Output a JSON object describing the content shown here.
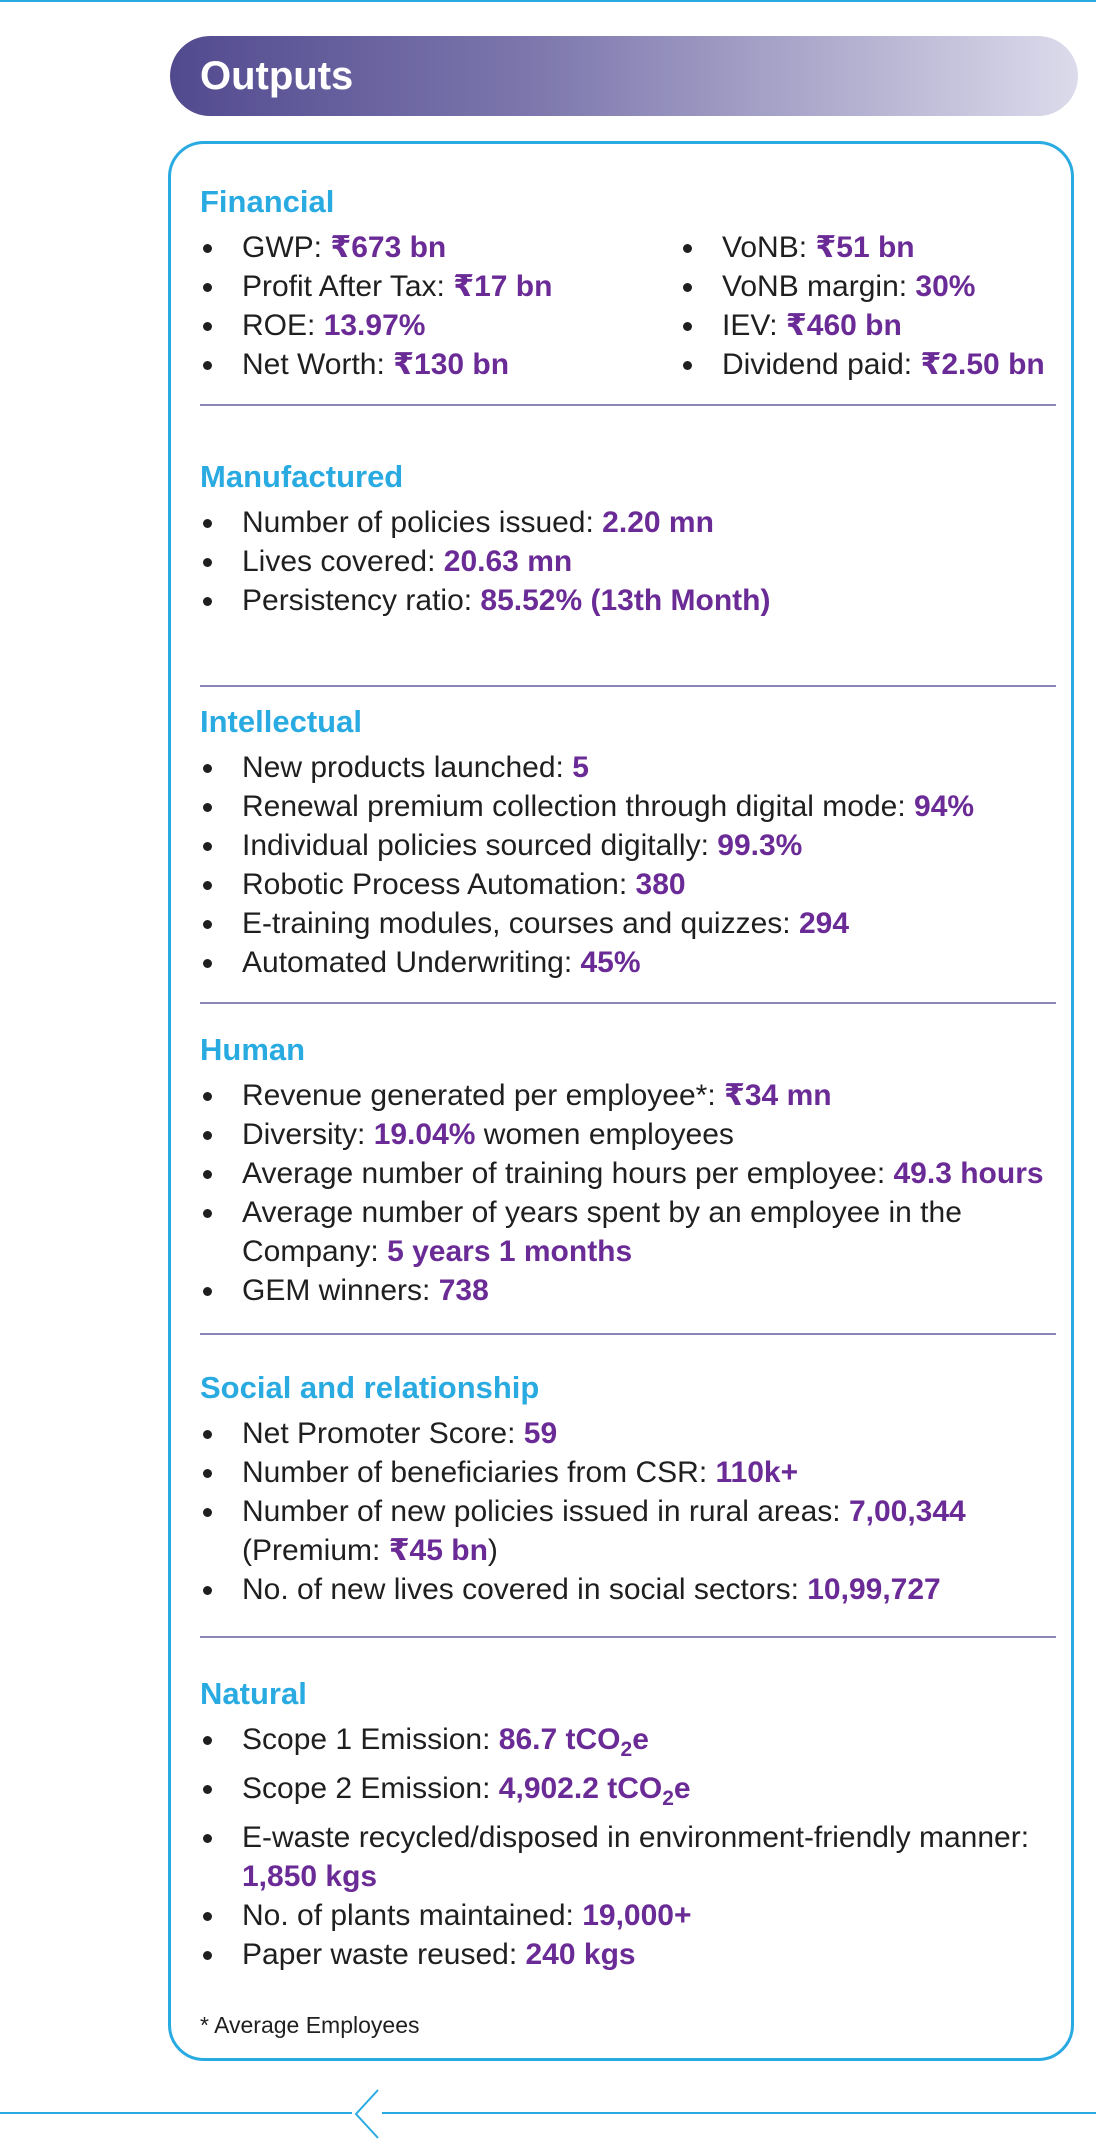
{
  "banner": {
    "title": "Outputs"
  },
  "financial": {
    "title": "Financial",
    "col1": [
      {
        "label": "GWP: ",
        "value": "₹673 bn"
      },
      {
        "label": "Profit After Tax: ",
        "value": "₹17 bn"
      },
      {
        "label": "ROE: ",
        "value": "13.97%"
      },
      {
        "label": "Net Worth: ",
        "value": "₹130 bn"
      }
    ],
    "col2": [
      {
        "label": "VoNB: ",
        "value": "₹51 bn"
      },
      {
        "label": "VoNB margin: ",
        "value": "30%"
      },
      {
        "label": "IEV: ",
        "value": "₹460 bn"
      },
      {
        "label": "Dividend paid: ",
        "value": "₹2.50 bn"
      }
    ]
  },
  "manufactured": {
    "title": "Manufactured",
    "items": [
      {
        "label": "Number of policies issued: ",
        "value": "2.20 mn"
      },
      {
        "label": "Lives covered: ",
        "value": "20.63 mn"
      },
      {
        "label": "Persistency ratio: ",
        "value": "85.52% (13th Month)"
      }
    ]
  },
  "intellectual": {
    "title": "Intellectual",
    "items": [
      {
        "label": "New products launched: ",
        "value": "5"
      },
      {
        "label": "Renewal premium collection through digital mode: ",
        "value": "94%"
      },
      {
        "label": "Individual policies sourced digitally: ",
        "value": "99.3%"
      },
      {
        "label": "Robotic Process Automation: ",
        "value": "380"
      },
      {
        "label": "E-training modules, courses and quizzes: ",
        "value": "294"
      },
      {
        "label": "Automated Underwriting: ",
        "value": "45%"
      }
    ]
  },
  "human": {
    "title": "Human",
    "items": [
      {
        "label": "Revenue generated per employee*: ",
        "value": "₹34 mn"
      },
      {
        "label": "Diversity: ",
        "value": "19.04%",
        "suffix": " women employees"
      },
      {
        "label": "Average number of training hours per employee: ",
        "value": "49.3 hours"
      },
      {
        "label": "Average number of years spent by an employee in the Company: ",
        "value": "5 years 1 months"
      },
      {
        "label": "GEM winners: ",
        "value": "738"
      }
    ]
  },
  "social": {
    "title": "Social and relationship",
    "items": [
      {
        "label": "Net Promoter Score: ",
        "value": "59"
      },
      {
        "label": "Number of beneficiaries from CSR: ",
        "value": "110k+"
      },
      {
        "label": "Number of new policies issued in rural areas: ",
        "value": "7,00,344",
        "prem_open": " (Premium: ",
        "prem_value": "₹45 bn",
        "prem_close": ")"
      },
      {
        "label": "No. of new lives covered in social sectors: ",
        "value": "10,99,727"
      }
    ]
  },
  "natural": {
    "title": "Natural",
    "items": [
      {
        "label": "Scope 1 Emission: ",
        "value": "86.7 tCO",
        "sub": "2",
        "unit_end": "e"
      },
      {
        "label": "Scope 2 Emission: ",
        "value": "4,902.2 tCO",
        "sub": "2",
        "unit_end": "e"
      },
      {
        "label": "E-waste recycled/disposed in environment-friendly manner: ",
        "value": "1,850 kgs"
      },
      {
        "label": "No. of plants maintained: ",
        "value": "19,000+"
      },
      {
        "label": "Paper waste reused: ",
        "value": "240 kgs"
      }
    ]
  },
  "footnote": "* Average Employees",
  "nav": {
    "icon": "chevron-left-icon"
  },
  "colors": {
    "accent_blue": "#29abe2",
    "value_purple": "#6a2b96",
    "divider": "#8b86b8"
  }
}
